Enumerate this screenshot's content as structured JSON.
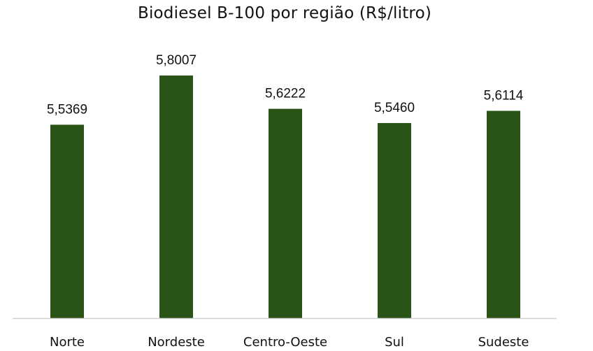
{
  "chart_data": {
    "type": "bar",
    "title": "Biodiesel B-100 por região (R$/litro)",
    "categories": [
      "Norte",
      "Nordeste",
      "Centro-Oeste",
      "Sul",
      "Sudeste"
    ],
    "values": [
      5.5369,
      5.8007,
      5.6222,
      5.546,
      5.6114
    ],
    "data_labels": [
      "5,5369",
      "5,8007",
      "5,6222",
      "5,5460",
      "5,6114"
    ],
    "ylim": [
      4.5,
      5.9
    ],
    "grid": false,
    "legend": "none",
    "colors": {
      "bar": "#2a5318",
      "axis": "#d0d0d0",
      "text": "#111111"
    }
  }
}
